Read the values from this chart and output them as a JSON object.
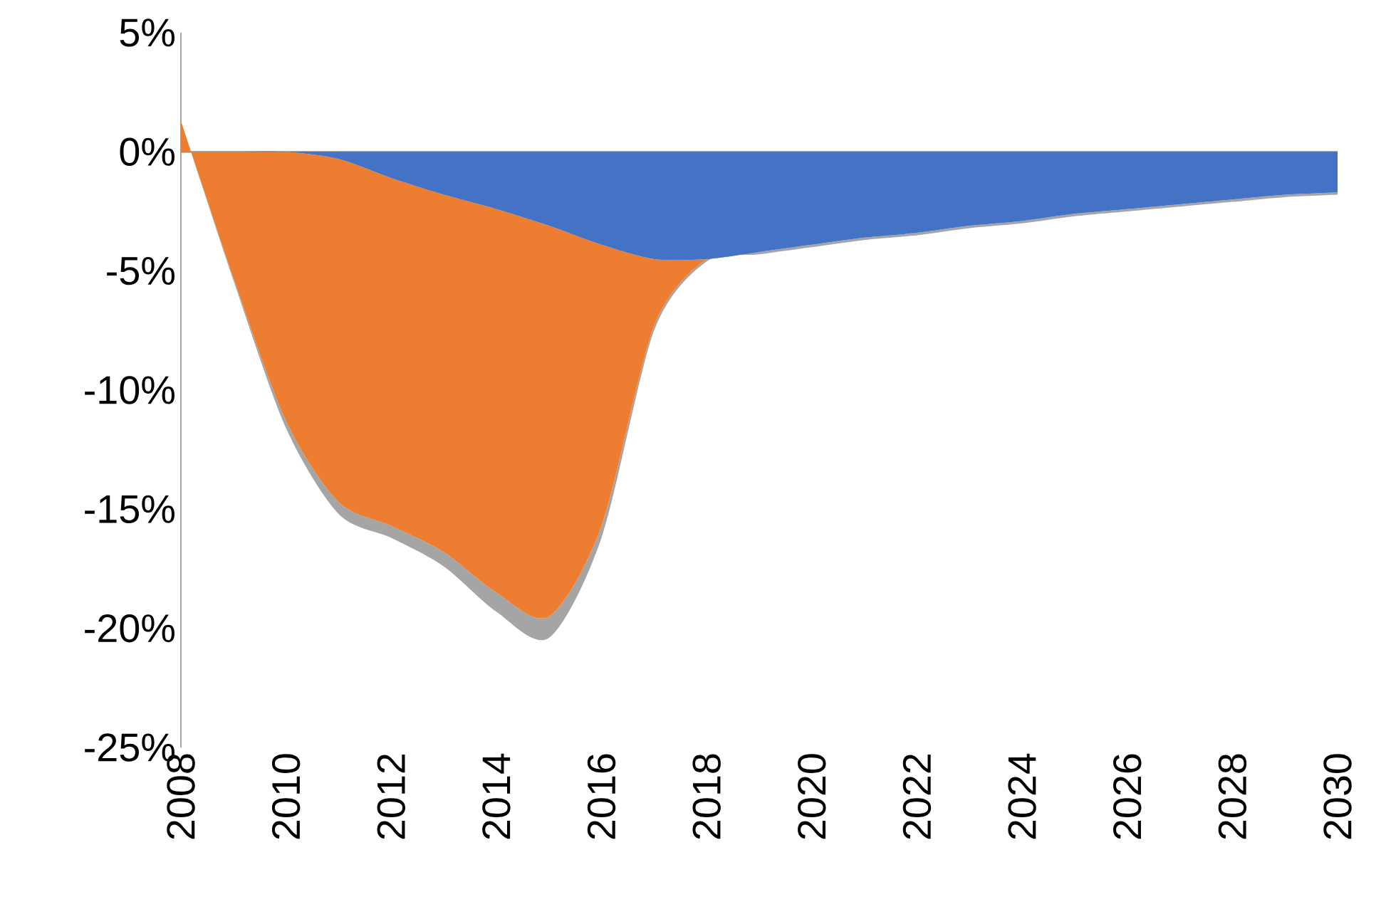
{
  "chart_data": {
    "type": "area",
    "stacked": true,
    "x": [
      2008,
      2009,
      2010,
      2011,
      2012,
      2013,
      2014,
      2015,
      2016,
      2017,
      2018,
      2019,
      2020,
      2021,
      2022,
      2023,
      2024,
      2025,
      2026,
      2027,
      2028,
      2029,
      2030
    ],
    "series": [
      {
        "color": "#4472c4",
        "values": [
          0,
          0,
          0,
          -0.3,
          -1.1,
          -1.8,
          -2.4,
          -3.1,
          -3.9,
          -4.5,
          -4.5,
          -4.2,
          -3.9,
          -3.6,
          -3.4,
          -3.1,
          -2.9,
          -2.6,
          -2.4,
          -2.2,
          -2.0,
          -1.8,
          -1.7
        ]
      },
      {
        "color": "#ed7d31",
        "values": [
          1.3,
          -5.3,
          -11.3,
          -14.4,
          -14.6,
          -15.0,
          -16.1,
          -16.4,
          -11.8,
          -2.8,
          0,
          0,
          0,
          0,
          0,
          0,
          0,
          0,
          0,
          0,
          0,
          0,
          0
        ]
      },
      {
        "color": "#a5a5a5",
        "values": [
          0,
          -0.1,
          -0.3,
          -0.5,
          -0.5,
          -0.6,
          -0.8,
          -0.9,
          -0.5,
          -0.2,
          -0.1,
          -0.1,
          -0.1,
          -0.1,
          -0.1,
          -0.1,
          -0.1,
          -0.1,
          -0.1,
          -0.1,
          -0.1,
          -0.1,
          -0.1
        ]
      }
    ],
    "xlim": [
      2008,
      2030
    ],
    "xticks": [
      2008,
      2010,
      2012,
      2014,
      2016,
      2018,
      2020,
      2022,
      2024,
      2026,
      2028,
      2030
    ],
    "ylim": [
      -25,
      5
    ],
    "yticks": [
      {
        "value": -25,
        "label": "-25%"
      },
      {
        "value": -20,
        "label": "-20%"
      },
      {
        "value": -15,
        "label": "-15%"
      },
      {
        "value": -10,
        "label": "-10%"
      },
      {
        "value": -5,
        "label": "-5%"
      },
      {
        "value": 0,
        "label": "0%"
      },
      {
        "value": 5,
        "label": "5%"
      }
    ],
    "ref_lines": [
      {
        "axis": "y",
        "value": 0,
        "color": "#8c8c8c"
      }
    ],
    "grid": false,
    "legend": false
  }
}
